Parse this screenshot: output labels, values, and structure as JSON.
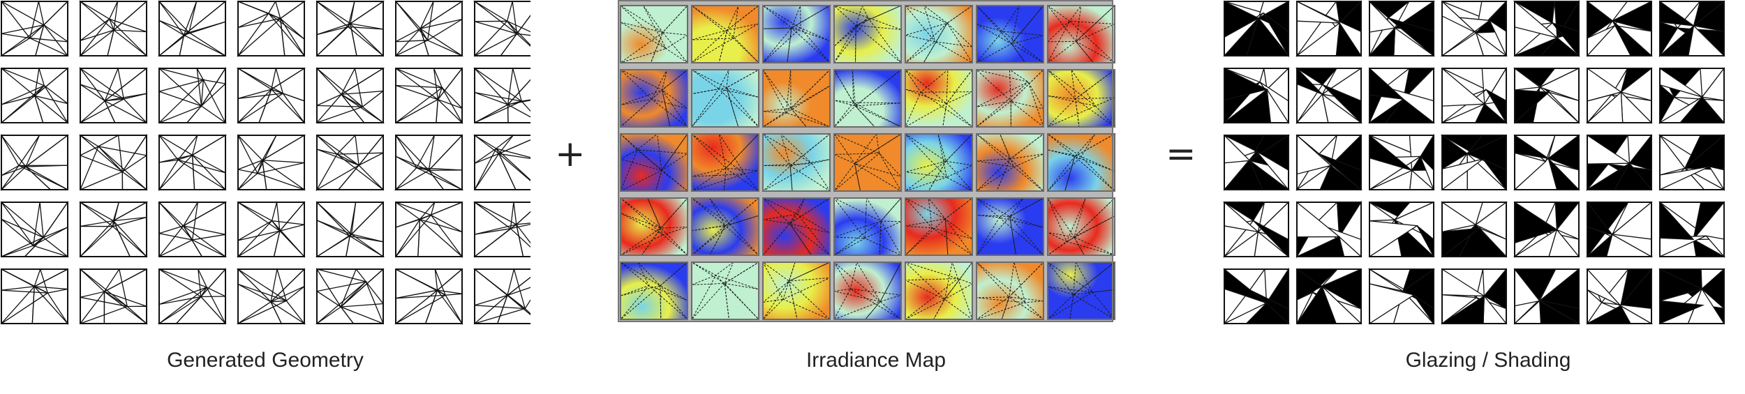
{
  "operators": {
    "plus": "+",
    "equals": "="
  },
  "captions": {
    "geometry": "Generated Geometry",
    "irradiance": "Irradiance Map",
    "glazing": "Glazing / Shading"
  },
  "grid": {
    "rows": 5,
    "cols": 7
  },
  "colors": {
    "line": "#111111",
    "frame": "#9a9a9a",
    "fill": "#000000",
    "irradiance_palette": [
      "#2a3cf0",
      "#e8ef4a",
      "#f08a2a",
      "#e82a1e",
      "#bff0d0",
      "#7ad4e8"
    ]
  }
}
